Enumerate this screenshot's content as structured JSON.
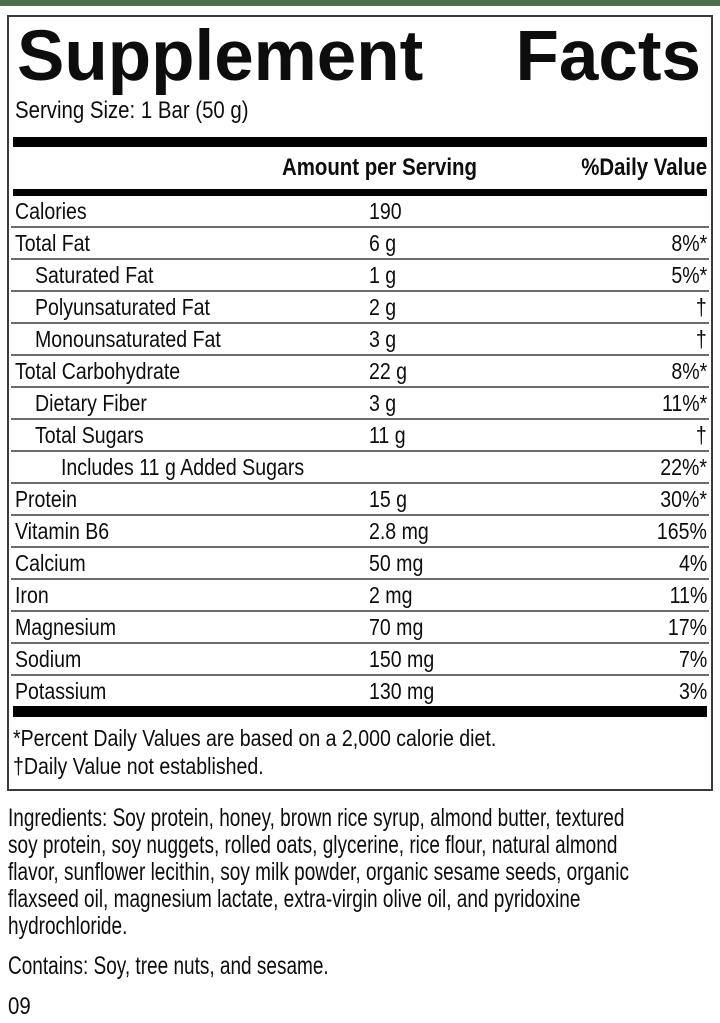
{
  "page": {
    "top_strip_color": "#4d6e4b",
    "code": "09"
  },
  "panel": {
    "title_word1": "Supplement",
    "title_word2": "Facts",
    "serving_size": "Serving Size: 1 Bar (50 g)",
    "header": {
      "amount": "Amount per Serving",
      "daily_value": "%Daily Value"
    },
    "rows": [
      {
        "name": "Calories",
        "amount": "190",
        "dv": "",
        "indent": 0
      },
      {
        "name": "Total Fat",
        "amount": "6 g",
        "dv": "8%*",
        "indent": 0
      },
      {
        "name": "Saturated Fat",
        "amount": "1 g",
        "dv": "5%*",
        "indent": 1
      },
      {
        "name": "Polyunsaturated Fat",
        "amount": "2 g",
        "dv": "†",
        "indent": 1
      },
      {
        "name": "Monounsaturated Fat",
        "amount": "3 g",
        "dv": "†",
        "indent": 1
      },
      {
        "name": "Total Carbohydrate",
        "amount": "22 g",
        "dv": "8%*",
        "indent": 0
      },
      {
        "name": "Dietary Fiber",
        "amount": "3 g",
        "dv": "11%*",
        "indent": 1
      },
      {
        "name": "Total Sugars",
        "amount": "11 g",
        "dv": "†",
        "indent": 1
      },
      {
        "name": "Includes 11 g Added Sugars",
        "amount": "",
        "dv": "22%*",
        "indent": 2
      },
      {
        "name": "Protein",
        "amount": "15 g",
        "dv": "30%*",
        "indent": 0
      },
      {
        "name": "Vitamin B6",
        "amount": "2.8 mg",
        "dv": "165%",
        "indent": 0
      },
      {
        "name": "Calcium",
        "amount": "50 mg",
        "dv": "4%",
        "indent": 0
      },
      {
        "name": "Iron",
        "amount": "2 mg",
        "dv": "11%",
        "indent": 0
      },
      {
        "name": "Magnesium",
        "amount": "70 mg",
        "dv": "17%",
        "indent": 0
      },
      {
        "name": "Sodium",
        "amount": "150 mg",
        "dv": "7%",
        "indent": 0
      },
      {
        "name": "Potassium",
        "amount": "130 mg",
        "dv": "3%",
        "indent": 0
      }
    ],
    "footnotes": [
      "*Percent Daily Values are based on a 2,000 calorie diet.",
      "†Daily Value not established."
    ]
  },
  "ingredients": {
    "lines": [
      "Ingredients: Soy protein, honey, brown rice syrup, almond butter, textured",
      "soy protein, soy nuggets, rolled oats, glycerine, rice flour, natural almond",
      "flavor, sunflower lecithin, soy milk powder, organic sesame seeds, organic",
      "flaxseed oil, magnesium lactate, extra-virgin olive oil, and pyridoxine",
      "hydrochloride."
    ]
  },
  "contains": "Contains: Soy, tree nuts, and sesame."
}
